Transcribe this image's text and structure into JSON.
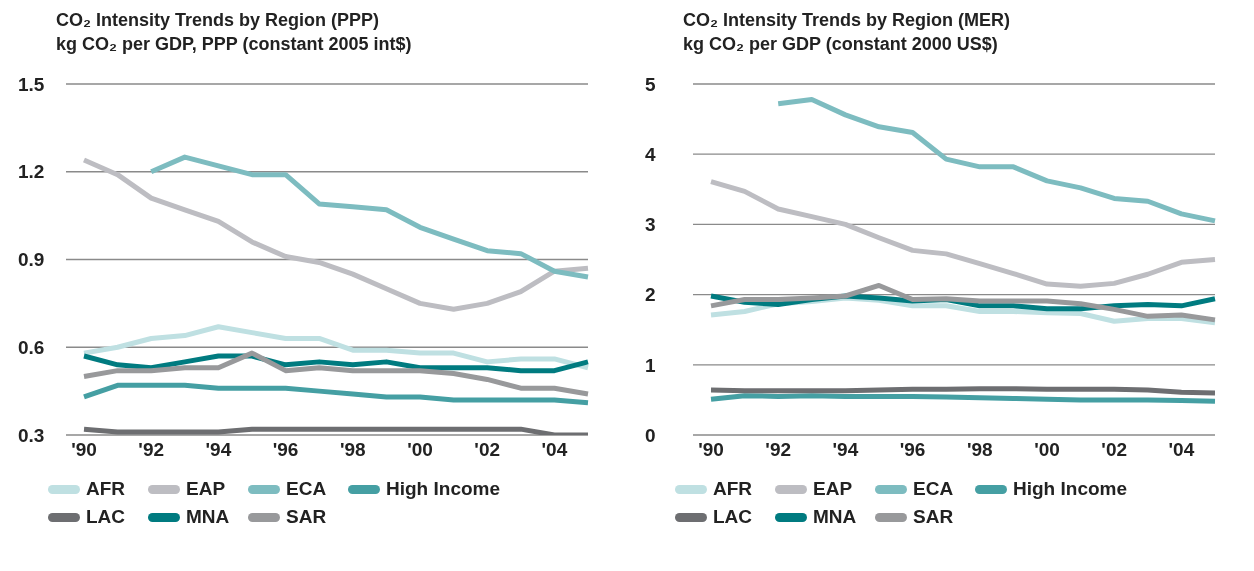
{
  "chart_data": [
    {
      "type": "line",
      "title": "CO₂ Intensity Trends by Region (PPP)",
      "subtitle": "kg CO₂ per GDP, PPP (constant 2005 int$)",
      "categories": [
        "'90",
        null,
        "'92",
        null,
        "'94",
        null,
        "'96",
        null,
        "'98",
        null,
        "'00",
        null,
        "'02",
        null,
        "'04",
        null
      ],
      "ylim": [
        0.3,
        1.5
      ],
      "yticks": [
        {
          "value": 0.3,
          "label": "0.3"
        },
        {
          "value": 0.6,
          "label": "0.6"
        },
        {
          "value": 0.9,
          "label": "0.9"
        },
        {
          "value": 1.2,
          "label": "1.2"
        },
        {
          "value": 1.5,
          "label": "1.5"
        }
      ],
      "grid": "y",
      "legend": "bottom",
      "marker": "none",
      "line_style": "solid",
      "series": [
        {
          "name": "AFR",
          "color": "#bfe0e2",
          "values": [
            0.58,
            0.6,
            0.63,
            0.64,
            0.67,
            0.65,
            0.63,
            0.63,
            0.59,
            0.59,
            0.58,
            0.58,
            0.55,
            0.56,
            0.56,
            0.53
          ]
        },
        {
          "name": "EAP",
          "color": "#bdbdc2",
          "values": [
            1.24,
            1.19,
            1.11,
            1.07,
            1.03,
            0.96,
            0.91,
            0.89,
            0.85,
            0.8,
            0.75,
            0.73,
            0.75,
            0.79,
            0.86,
            0.87
          ]
        },
        {
          "name": "ECA",
          "color": "#7dbcc0",
          "values": [
            null,
            null,
            1.2,
            1.25,
            1.22,
            1.19,
            1.19,
            1.09,
            1.08,
            1.07,
            1.01,
            0.97,
            0.93,
            0.92,
            0.86,
            0.84
          ]
        },
        {
          "name": "High Income",
          "color": "#459fa3",
          "values": [
            0.43,
            0.47,
            0.47,
            0.47,
            0.46,
            0.46,
            0.46,
            0.45,
            0.44,
            0.43,
            0.43,
            0.42,
            0.42,
            0.42,
            0.42,
            0.41
          ]
        },
        {
          "name": "LAC",
          "color": "#6d6e71",
          "values": [
            0.32,
            0.31,
            0.31,
            0.31,
            0.31,
            0.32,
            0.32,
            0.32,
            0.32,
            0.32,
            0.32,
            0.32,
            0.32,
            0.32,
            0.3,
            0.3
          ]
        },
        {
          "name": "MNA",
          "color": "#007b80",
          "values": [
            0.57,
            0.54,
            0.53,
            0.55,
            0.57,
            0.57,
            0.54,
            0.55,
            0.54,
            0.55,
            0.53,
            0.53,
            0.53,
            0.52,
            0.52,
            0.55
          ]
        },
        {
          "name": "SAR",
          "color": "#98999b",
          "values": [
            0.5,
            0.52,
            0.52,
            0.53,
            0.53,
            0.58,
            0.52,
            0.53,
            0.52,
            0.52,
            0.52,
            0.51,
            0.49,
            0.46,
            0.46,
            0.44
          ]
        }
      ]
    },
    {
      "type": "line",
      "title": "CO₂ Intensity Trends by Region (MER)",
      "subtitle": "kg CO₂ per GDP (constant 2000 US$)",
      "categories": [
        "'90",
        null,
        "'92",
        null,
        "'94",
        null,
        "'96",
        null,
        "'98",
        null,
        "'00",
        null,
        "'02",
        null,
        "'04",
        null
      ],
      "ylim": [
        0,
        5
      ],
      "yticks": [
        0,
        1,
        2,
        3,
        4,
        5
      ],
      "grid": "y",
      "legend": "bottom",
      "marker": "none",
      "line_style": "solid",
      "series": [
        {
          "name": "AFR",
          "color": "#bfe0e2",
          "values": [
            1.71,
            1.76,
            1.87,
            1.9,
            1.95,
            1.92,
            1.84,
            1.84,
            1.76,
            1.76,
            1.74,
            1.73,
            1.62,
            1.66,
            1.66,
            1.6
          ]
        },
        {
          "name": "EAP",
          "color": "#bdbdc2",
          "values": [
            3.61,
            3.47,
            3.22,
            3.11,
            3.0,
            2.81,
            2.63,
            2.58,
            2.44,
            2.3,
            2.15,
            2.12,
            2.16,
            2.29,
            2.46,
            2.5
          ]
        },
        {
          "name": "ECA",
          "color": "#7dbcc0",
          "values": [
            null,
            null,
            4.72,
            4.78,
            4.56,
            4.39,
            4.31,
            3.93,
            3.82,
            3.82,
            3.62,
            3.52,
            3.37,
            3.33,
            3.15,
            3.05
          ]
        },
        {
          "name": "High Income",
          "color": "#459fa3",
          "values": [
            0.51,
            0.56,
            0.55,
            0.56,
            0.55,
            0.55,
            0.55,
            0.54,
            0.53,
            0.52,
            0.51,
            0.5,
            0.5,
            0.5,
            0.49,
            0.48
          ]
        },
        {
          "name": "LAC",
          "color": "#6d6e71",
          "values": [
            0.64,
            0.63,
            0.63,
            0.63,
            0.63,
            0.64,
            0.65,
            0.65,
            0.66,
            0.66,
            0.65,
            0.65,
            0.65,
            0.64,
            0.61,
            0.6
          ]
        },
        {
          "name": "MNA",
          "color": "#007b80",
          "values": [
            1.98,
            1.89,
            1.86,
            1.93,
            1.98,
            1.95,
            1.91,
            1.93,
            1.84,
            1.84,
            1.8,
            1.8,
            1.84,
            1.86,
            1.84,
            1.94
          ]
        },
        {
          "name": "SAR",
          "color": "#98999b",
          "values": [
            1.84,
            1.93,
            1.93,
            1.95,
            1.98,
            2.13,
            1.93,
            1.94,
            1.91,
            1.91,
            1.91,
            1.87,
            1.79,
            1.69,
            1.71,
            1.64
          ]
        }
      ]
    }
  ]
}
